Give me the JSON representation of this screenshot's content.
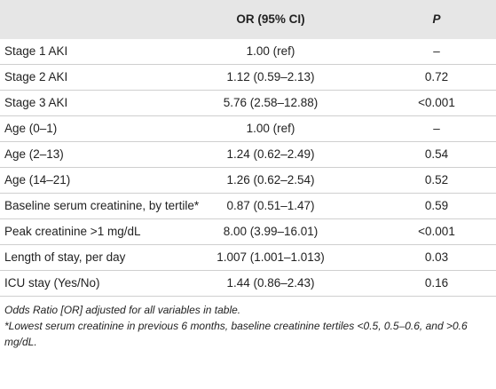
{
  "header": {
    "or": "OR (95% CI)",
    "p": "P"
  },
  "rows": [
    [
      "Stage 1 AKI",
      "1.00 (ref)",
      "–"
    ],
    [
      "Stage 2 AKI",
      "1.12 (0.59–2.13)",
      "0.72"
    ],
    [
      "Stage 3 AKI",
      "5.76 (2.58–12.88)",
      "<0.001"
    ],
    [
      "Age (0–1)",
      "1.00 (ref)",
      "–"
    ],
    [
      "Age (2–13)",
      "1.24 (0.62–2.49)",
      "0.54"
    ],
    [
      "Age (14–21)",
      "1.26 (0.62–2.54)",
      "0.52"
    ],
    [
      "Baseline serum creatinine, by tertile*",
      "0.87 (0.51–1.47)",
      "0.59"
    ],
    [
      "Peak creatinine >1 mg/dL",
      "8.00 (3.99–16.01)",
      "<0.001"
    ],
    [
      "Length of stay, per day",
      "1.007 (1.001–1.013)",
      "0.03"
    ],
    [
      "ICU stay (Yes/No)",
      "1.44 (0.86–2.43)",
      "0.16"
    ]
  ],
  "footnotes": [
    "Odds Ratio [OR] adjusted for all variables in table.",
    "*Lowest serum creatinine in previous 6 months, baseline creatinine tertiles <0.5, 0.5–0.6, and >0.6 mg/dL."
  ]
}
